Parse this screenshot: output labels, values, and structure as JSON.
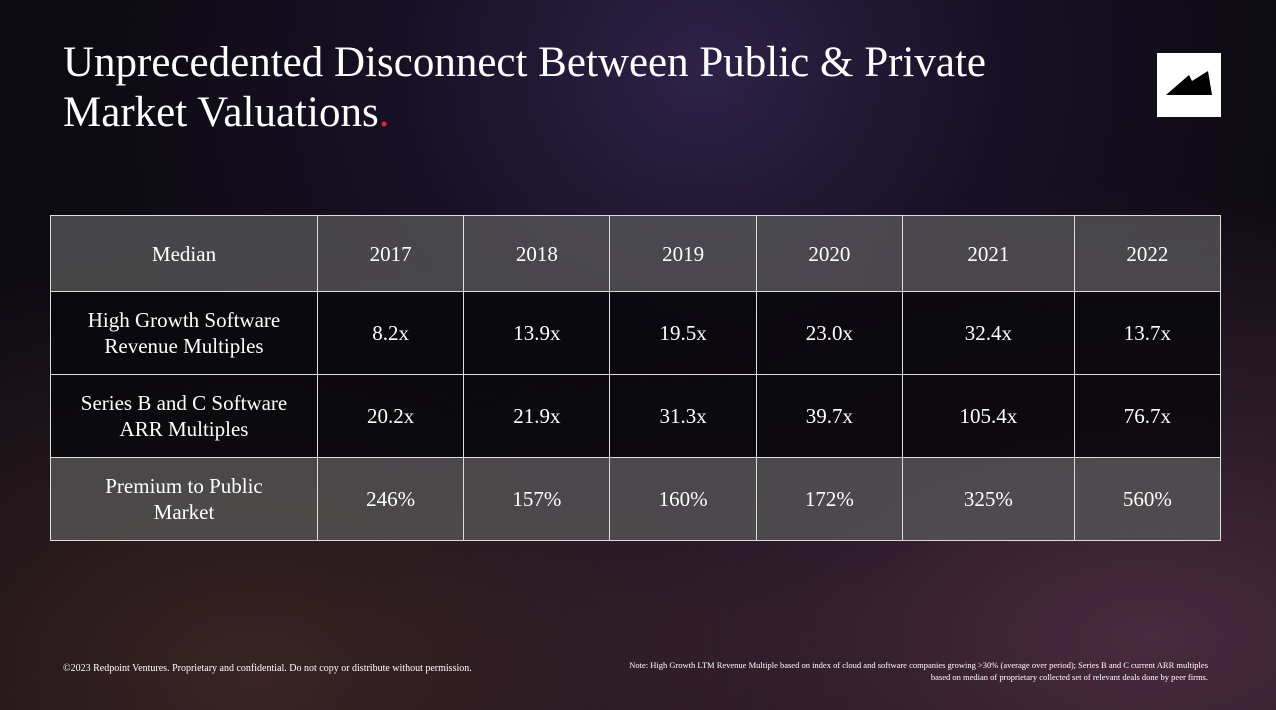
{
  "title": "Unprecedented Disconnect Between Public & Private Market Valuations",
  "title_dot": ".",
  "table": {
    "headers": [
      "Median",
      "2017",
      "2018",
      "2019",
      "2020",
      "2021",
      "2022"
    ],
    "rows": [
      {
        "label": "High Growth Software Revenue Multiples",
        "values": [
          "8.2x",
          "13.9x",
          "19.5x",
          "23.0x",
          "32.4x",
          "13.7x"
        ]
      },
      {
        "label": "Series B and C Software ARR Multiples",
        "values": [
          "20.2x",
          "21.9x",
          "31.3x",
          "39.7x",
          "105.4x",
          "76.7x"
        ]
      },
      {
        "label": "Premium to Public Market",
        "values": [
          "246%",
          "157%",
          "160%",
          "172%",
          "325%",
          "560%"
        ]
      }
    ]
  },
  "footer": "©2023 Redpoint Ventures. Proprietary and confidential. Do not copy or distribute without permission.",
  "note": "Note: High Growth LTM Revenue Multiple based on index of cloud and software companies growing >30% (average over period); Series B and C current ARR multiples based on median of proprietary collected set of relevant deals done by peer firms.",
  "accent": "#e0243a"
}
